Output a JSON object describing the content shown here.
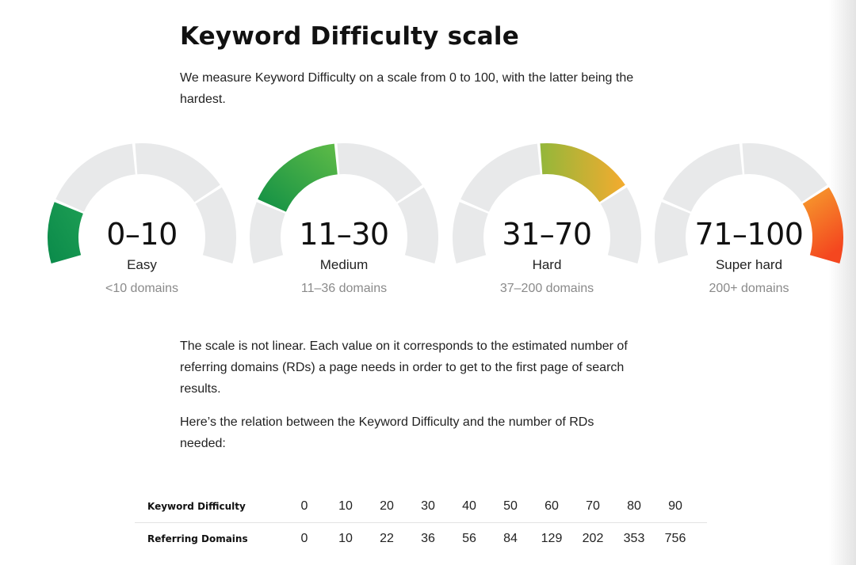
{
  "heading": "Keyword Difficulty scale",
  "intro": "We measure Keyword Difficulty on a scale from 0 to 100, with the latter being the hardest.",
  "gauges": [
    {
      "range": "0–10",
      "label": "Easy",
      "domains": "<10 domains",
      "colors": [
        "#0a8a4a",
        "#1e9e54"
      ]
    },
    {
      "range": "11–30",
      "label": "Medium",
      "domains": "11–36 domains",
      "colors": [
        "#0f8f45",
        "#5fbb47"
      ]
    },
    {
      "range": "31–70",
      "label": "Hard",
      "domains": "37–200 domains",
      "colors": [
        "#93b73a",
        "#f4ab2f"
      ]
    },
    {
      "range": "71–100",
      "label": "Super hard",
      "domains": "200+ domains",
      "colors": [
        "#f6a02e",
        "#f4471f"
      ]
    }
  ],
  "note1": "The scale is not linear. Each value on it corresponds to the estimated number of referring domains (RDs) a page needs in order to get to the first page of search results.",
  "note2": "Here’s the relation between the Keyword Difficulty and the number of RDs needed:",
  "table": {
    "rows": [
      {
        "header": "Keyword Difficulty",
        "values": [
          "0",
          "10",
          "20",
          "30",
          "40",
          "50",
          "60",
          "70",
          "80",
          "90"
        ]
      },
      {
        "header": "Referring Domains",
        "values": [
          "0",
          "10",
          "22",
          "36",
          "56",
          "84",
          "129",
          "202",
          "353",
          "756"
        ]
      }
    ]
  },
  "track_color": "#e8e9ea"
}
